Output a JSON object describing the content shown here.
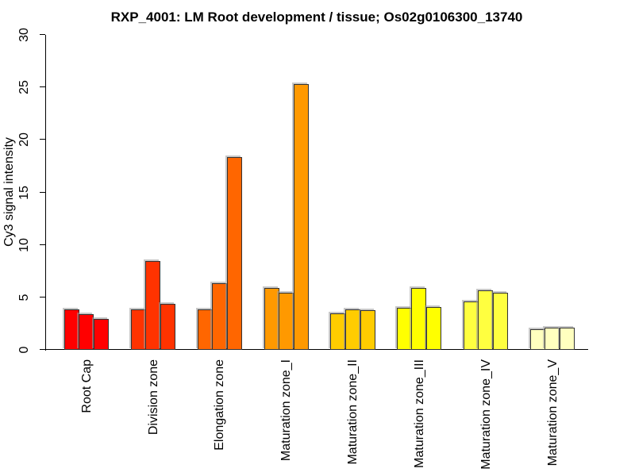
{
  "figure": {
    "title": "RXP_4001: LM Root development / tissue; Os02g0106300_13740"
  },
  "chart_data": {
    "type": "bar",
    "title": "RXP_4001: LM Root development / tissue; Os02g0106300_13740",
    "subtitle": "",
    "xlabel": "",
    "ylabel": "Cy3 signal intensity",
    "ylim": [
      0,
      30
    ],
    "yticks": [
      0,
      5,
      10,
      15,
      20,
      25,
      30
    ],
    "grid": false,
    "legend_position": "none",
    "bars_per_category": 3,
    "bar_border_color": "#333333",
    "categories": [
      "Root Cap",
      "Division zone",
      "Elongation zone",
      "Maturation zone_I",
      "Maturation zone_II",
      "Maturation zone_III",
      "Maturation zone_IV",
      "Maturation zone_V"
    ],
    "groups": [
      {
        "label": "Root Cap",
        "color": "#FF0000",
        "values": [
          3.85,
          3.4,
          2.95
        ]
      },
      {
        "label": "Division zone",
        "color": "#FF3300",
        "values": [
          3.85,
          8.5,
          4.4
        ]
      },
      {
        "label": "Elongation zone",
        "color": "#FF6600",
        "values": [
          3.85,
          6.35,
          18.4
        ]
      },
      {
        "label": "Maturation zone_I",
        "color": "#FF9900",
        "values": [
          5.9,
          5.45,
          25.3
        ]
      },
      {
        "label": "Maturation zone_II",
        "color": "#FFCC00",
        "values": [
          3.5,
          3.85,
          3.8
        ]
      },
      {
        "label": "Maturation zone_III",
        "color": "#FFFF00",
        "values": [
          4.0,
          5.9,
          4.05
        ]
      },
      {
        "label": "Maturation zone_IV",
        "color": "#FFFF40",
        "values": [
          4.6,
          5.65,
          5.45
        ]
      },
      {
        "label": "Maturation zone_V",
        "color": "#FFFFBF",
        "values": [
          2.0,
          2.1,
          2.1
        ]
      }
    ]
  }
}
